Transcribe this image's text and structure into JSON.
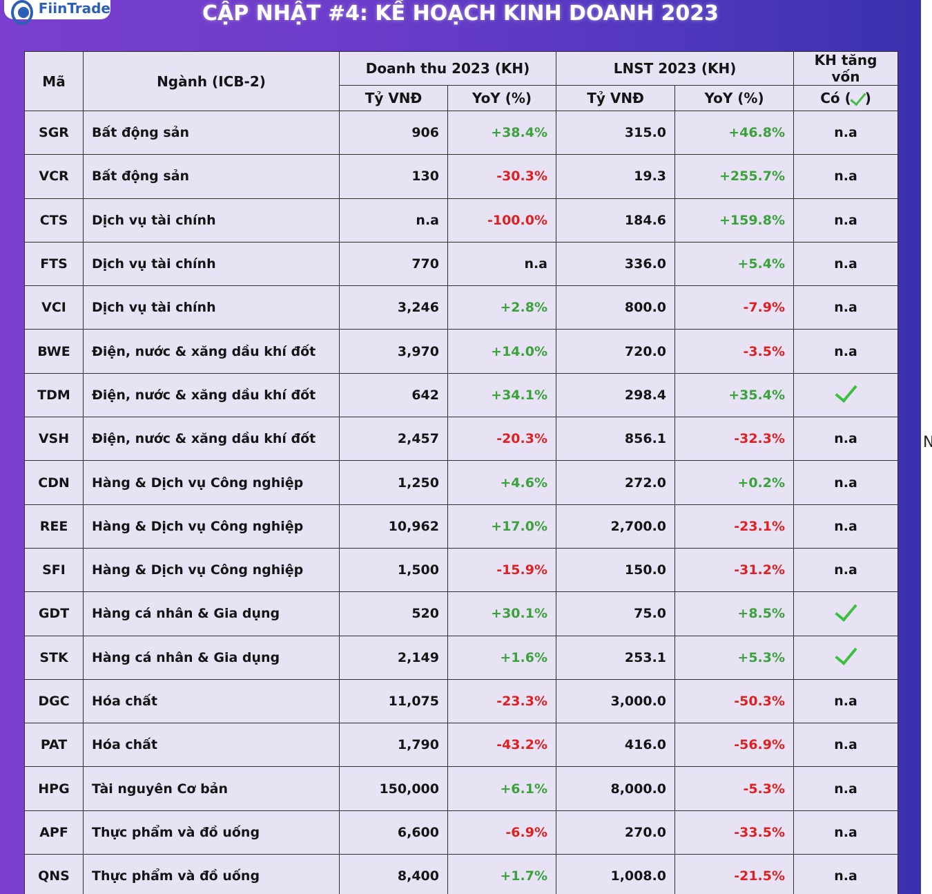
{
  "brand": {
    "logo_text": "FiinTrade"
  },
  "title": "CẬP NHẬT #4: KẾ HOẠCH KINH DOANH 2023",
  "side_glyph": "N",
  "colors": {
    "positive": "#3aa23a",
    "negative": "#e02020",
    "check": "#3fbf3f"
  },
  "headers": {
    "code": "Mã",
    "sector": "Ngành (ICB-2)",
    "revenue_group": "Doanh thu 2023 (KH)",
    "profit_group": "LNST 2023 (KH)",
    "capital_group": "KH tăng vốn",
    "unit": "Tỷ VNĐ",
    "yoy": "YoY (%)",
    "yes_prefix": "Có (",
    "yes_suffix": ")"
  },
  "rows": [
    {
      "code": "SGR",
      "sector": "Bất động sản",
      "revenue": "906",
      "revenue_yoy": "+38.4%",
      "profit": "315.0",
      "profit_yoy": "+46.8%",
      "capital": "n.a"
    },
    {
      "code": "VCR",
      "sector": "Bất động sản",
      "revenue": "130",
      "revenue_yoy": "-30.3%",
      "profit": "19.3",
      "profit_yoy": "+255.7%",
      "capital": "n.a"
    },
    {
      "code": "CTS",
      "sector": "Dịch vụ tài chính",
      "revenue": "n.a",
      "revenue_yoy": "-100.0%",
      "profit": "184.6",
      "profit_yoy": "+159.8%",
      "capital": "n.a"
    },
    {
      "code": "FTS",
      "sector": "Dịch vụ tài chính",
      "revenue": "770",
      "revenue_yoy": "n.a",
      "profit": "336.0",
      "profit_yoy": "+5.4%",
      "capital": "n.a"
    },
    {
      "code": "VCI",
      "sector": "Dịch vụ tài chính",
      "revenue": "3,246",
      "revenue_yoy": "+2.8%",
      "profit": "800.0",
      "profit_yoy": "-7.9%",
      "capital": "n.a"
    },
    {
      "code": "BWE",
      "sector": "Điện, nước & xăng dầu khí đốt",
      "revenue": "3,970",
      "revenue_yoy": "+14.0%",
      "profit": "720.0",
      "profit_yoy": "-3.5%",
      "capital": "n.a"
    },
    {
      "code": "TDM",
      "sector": "Điện, nước & xăng dầu khí đốt",
      "revenue": "642",
      "revenue_yoy": "+34.1%",
      "profit": "298.4",
      "profit_yoy": "+35.4%",
      "capital": "check"
    },
    {
      "code": "VSH",
      "sector": "Điện, nước & xăng dầu khí đốt",
      "revenue": "2,457",
      "revenue_yoy": "-20.3%",
      "profit": "856.1",
      "profit_yoy": "-32.3%",
      "capital": "n.a"
    },
    {
      "code": "CDN",
      "sector": "Hàng & Dịch vụ Công nghiệp",
      "revenue": "1,250",
      "revenue_yoy": "+4.6%",
      "profit": "272.0",
      "profit_yoy": "+0.2%",
      "capital": "n.a"
    },
    {
      "code": "REE",
      "sector": "Hàng & Dịch vụ Công nghiệp",
      "revenue": "10,962",
      "revenue_yoy": "+17.0%",
      "profit": "2,700.0",
      "profit_yoy": "-23.1%",
      "capital": "n.a"
    },
    {
      "code": "SFI",
      "sector": "Hàng & Dịch vụ Công nghiệp",
      "revenue": "1,500",
      "revenue_yoy": "-15.9%",
      "profit": "150.0",
      "profit_yoy": "-31.2%",
      "capital": "n.a"
    },
    {
      "code": "GDT",
      "sector": "Hàng cá nhân & Gia dụng",
      "revenue": "520",
      "revenue_yoy": "+30.1%",
      "profit": "75.0",
      "profit_yoy": "+8.5%",
      "capital": "check"
    },
    {
      "code": "STK",
      "sector": "Hàng cá nhân & Gia dụng",
      "revenue": "2,149",
      "revenue_yoy": "+1.6%",
      "profit": "253.1",
      "profit_yoy": "+5.3%",
      "capital": "check"
    },
    {
      "code": "DGC",
      "sector": "Hóa chất",
      "revenue": "11,075",
      "revenue_yoy": "-23.3%",
      "profit": "3,000.0",
      "profit_yoy": "-50.3%",
      "capital": "n.a"
    },
    {
      "code": "PAT",
      "sector": "Hóa chất",
      "revenue": "1,790",
      "revenue_yoy": "-43.2%",
      "profit": "416.0",
      "profit_yoy": "-56.9%",
      "capital": "n.a"
    },
    {
      "code": "HPG",
      "sector": "Tài nguyên Cơ bản",
      "revenue": "150,000",
      "revenue_yoy": "+6.1%",
      "profit": "8,000.0",
      "profit_yoy": "-5.3%",
      "capital": "n.a"
    },
    {
      "code": "APF",
      "sector": "Thực phẩm và đồ uống",
      "revenue": "6,600",
      "revenue_yoy": "-6.9%",
      "profit": "270.0",
      "profit_yoy": "-33.5%",
      "capital": "n.a"
    },
    {
      "code": "QNS",
      "sector": "Thực phẩm và đồ uống",
      "revenue": "8,400",
      "revenue_yoy": "+1.7%",
      "profit": "1,008.0",
      "profit_yoy": "-21.5%",
      "capital": "n.a"
    }
  ]
}
